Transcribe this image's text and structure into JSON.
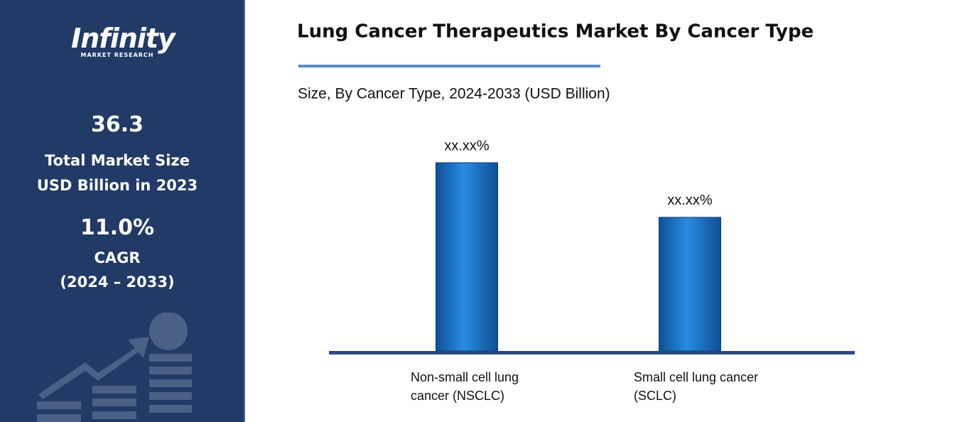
{
  "logo": {
    "name": "Infinity",
    "tagline": "MARKET RESEARCH"
  },
  "sidebar": {
    "market_size": "36.3",
    "market_size_label": "Total Market Size",
    "market_size_unit": "USD Billion in 2023",
    "cagr": "11.0%",
    "cagr_label": "CAGR",
    "cagr_period": "(2024 – 2033)"
  },
  "chart_data": {
    "type": "bar",
    "title": "Lung Cancer Therapeutics Market By Cancer Type",
    "subtitle": "Size, By Cancer Type, 2024-2033 (USD Billion)",
    "categories": [
      "Non-small cell lung cancer (NSCLC)",
      "Small cell lung cancer (SCLC)"
    ],
    "values": [
      100,
      71
    ],
    "value_labels": [
      "xx.xx%",
      "xx.xx%"
    ],
    "color": "#1f78c8"
  }
}
